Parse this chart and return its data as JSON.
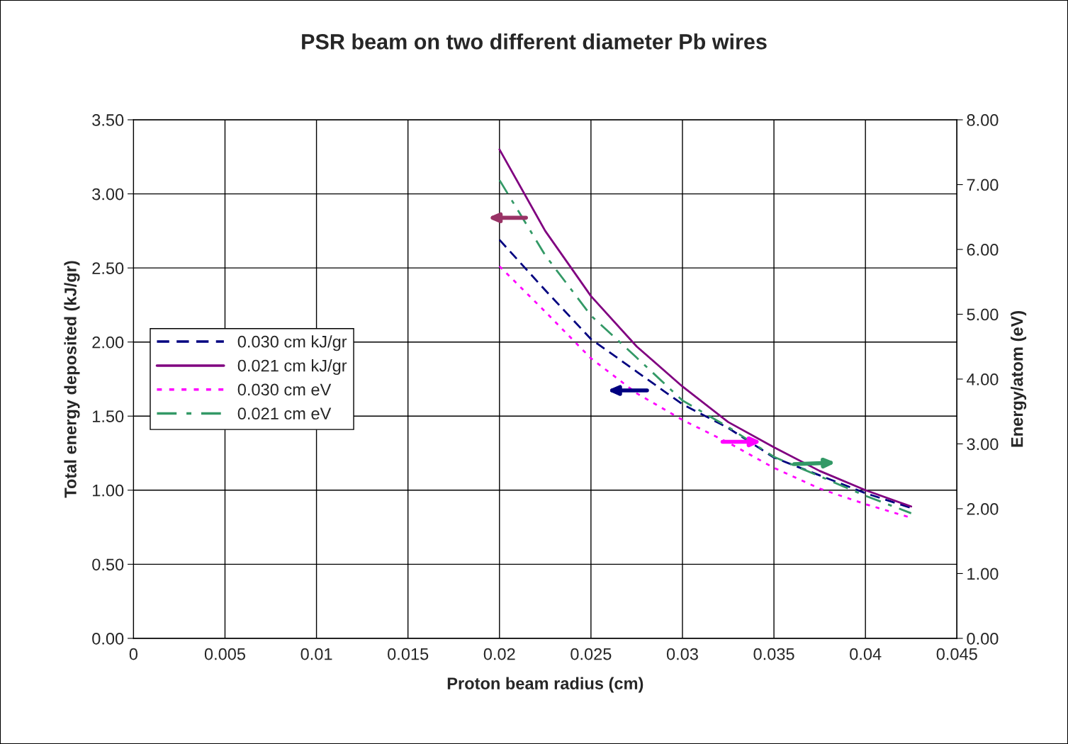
{
  "chart_data": {
    "type": "line",
    "title": "PSR beam on two different diameter Pb wires",
    "xlabel": "Proton beam radius (cm)",
    "ylabel": "Total energy deposited (kJ/gr)",
    "y2label": "Energy/atom (eV)",
    "x": [
      0.02,
      0.0225,
      0.025,
      0.0275,
      0.03,
      0.0325,
      0.035,
      0.0375,
      0.04,
      0.0425
    ],
    "series": [
      {
        "name": "0.030 cm kJ/gr",
        "color": "#000080",
        "line_style": "dashed",
        "values": [
          2.69,
          2.35,
          2.02,
          1.8,
          1.58,
          1.42,
          1.22,
          1.1,
          0.98,
          0.88
        ]
      },
      {
        "name": "0.021 cm kJ/gr",
        "color": "#800080",
        "line_style": "solid",
        "values": [
          3.3,
          2.75,
          2.31,
          1.97,
          1.7,
          1.46,
          1.29,
          1.13,
          1.0,
          0.89
        ]
      },
      {
        "name": "0.030 cm eV",
        "color": "#ff00ff",
        "line_style": "dotted",
        "axis": "y2",
        "values": [
          5.74,
          5.04,
          4.32,
          3.78,
          3.37,
          3.02,
          2.63,
          2.31,
          2.07,
          1.86
        ]
      },
      {
        "name": "0.021 cm eV",
        "color": "#339966",
        "line_style": "dashdot",
        "axis": "y2",
        "values": [
          7.07,
          5.91,
          4.98,
          4.33,
          3.67,
          3.26,
          2.8,
          2.5,
          2.2,
          1.93
        ]
      }
    ],
    "xlim": [
      0,
      0.045
    ],
    "xticks": [
      0,
      0.005,
      0.01,
      0.015,
      0.02,
      0.025,
      0.03,
      0.035,
      0.04,
      0.045
    ],
    "ylim": [
      0,
      3.5
    ],
    "yticks": [
      {
        "value": 0,
        "label": "0.00"
      },
      {
        "value": 0.5,
        "label": "0.50"
      },
      {
        "value": 1,
        "label": "1.00"
      },
      {
        "value": 1.5,
        "label": "1.50"
      },
      {
        "value": 2,
        "label": "2.00"
      },
      {
        "value": 2.5,
        "label": "2.50"
      },
      {
        "value": 3,
        "label": "3.00"
      },
      {
        "value": 3.5,
        "label": "3.50"
      }
    ],
    "y2lim": [
      0,
      8
    ],
    "y2ticks": [
      {
        "value": 0,
        "label": "0.00"
      },
      {
        "value": 1,
        "label": "1.00"
      },
      {
        "value": 2,
        "label": "2.00"
      },
      {
        "value": 3,
        "label": "3.00"
      },
      {
        "value": 4,
        "label": "4.00"
      },
      {
        "value": 5,
        "label": "5.00"
      },
      {
        "value": 6,
        "label": "6.00"
      },
      {
        "value": 7,
        "label": "7.00"
      },
      {
        "value": 8,
        "label": "8.00"
      }
    ],
    "grid": true,
    "legend": "center left",
    "marker": "none"
  }
}
